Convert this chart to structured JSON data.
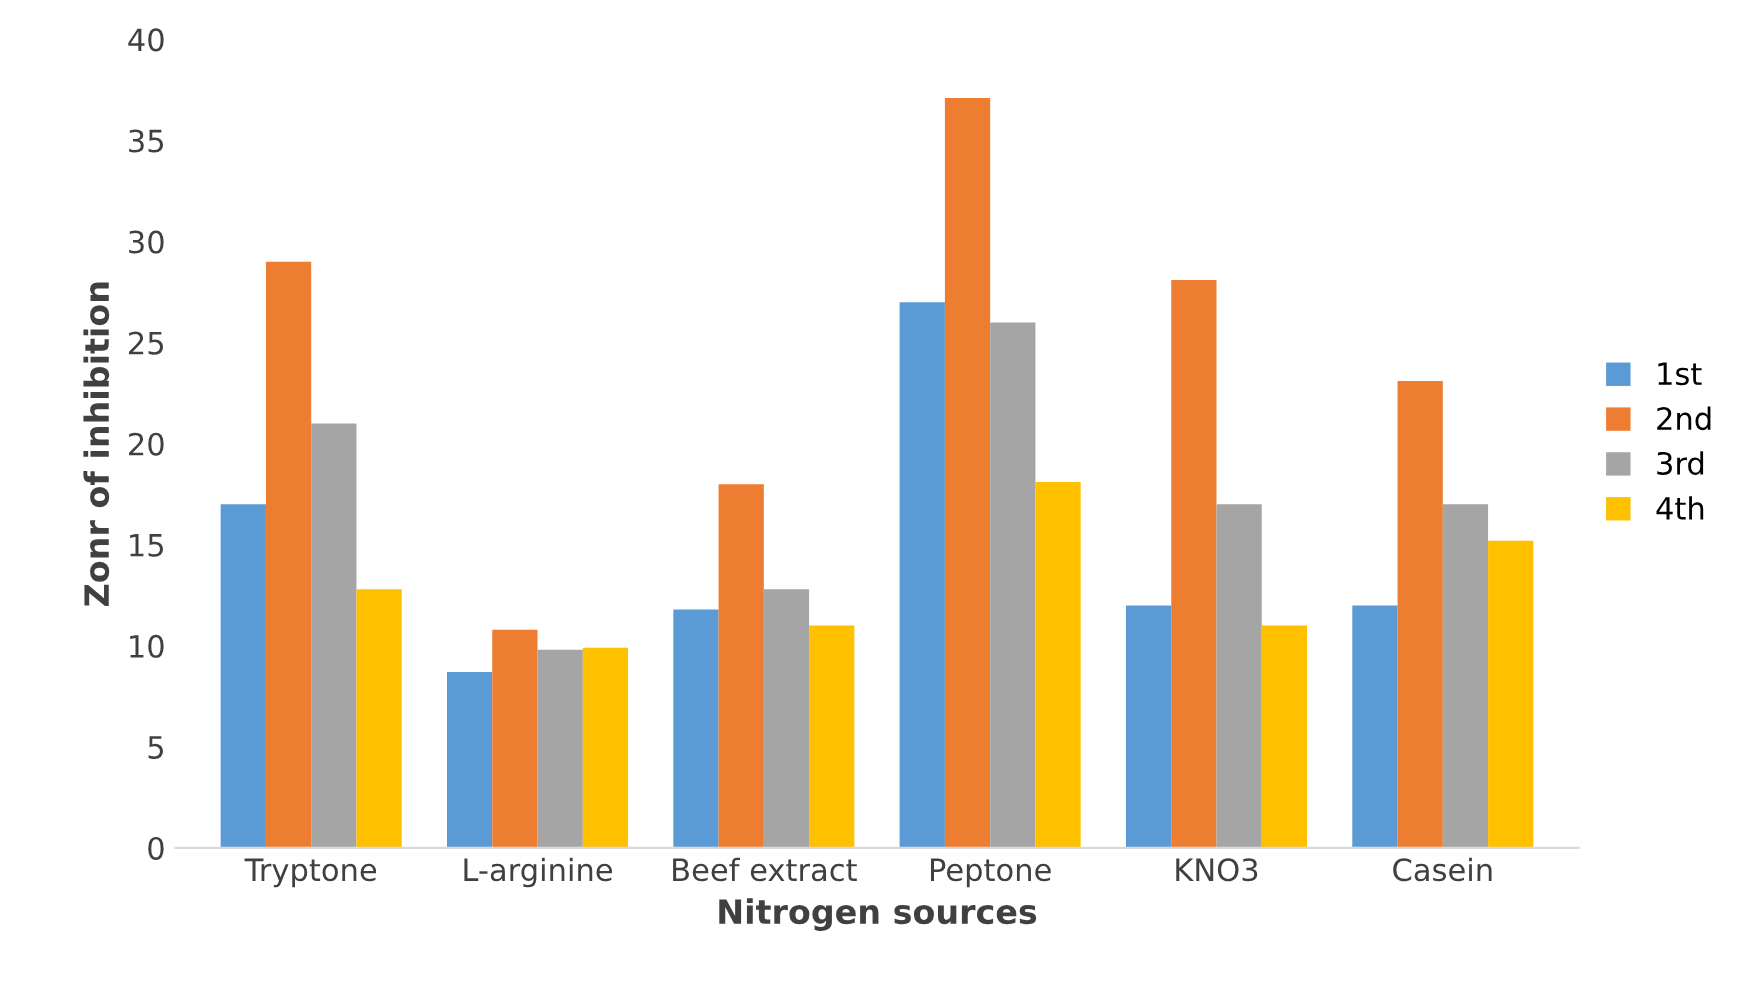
{
  "chart_data": {
    "type": "bar",
    "xlabel": "Nitrogen sources",
    "ylabel": "Zonr of inhibition",
    "categories": [
      "Tryptone",
      "L-arginine",
      "Beef extract",
      "Peptone",
      "KNO3",
      "Casein"
    ],
    "series": [
      {
        "name": "1st",
        "color": "#5b9bd5",
        "values": [
          17,
          8.7,
          11.8,
          27,
          12,
          12
        ]
      },
      {
        "name": "2nd",
        "color": "#ed7d31",
        "values": [
          29,
          10.8,
          18,
          37.1,
          28.1,
          23.1
        ]
      },
      {
        "name": "3rd",
        "color": "#a5a5a5",
        "values": [
          21,
          9.8,
          12.8,
          26,
          17,
          17
        ]
      },
      {
        "name": "4th",
        "color": "#ffc000",
        "values": [
          12.8,
          9.9,
          11,
          18.1,
          11,
          15.2
        ]
      }
    ],
    "ylim": [
      0,
      40
    ],
    "yticks": [
      0,
      5,
      10,
      15,
      20,
      25,
      30,
      35,
      40
    ],
    "grid": false,
    "legend": "right"
  }
}
